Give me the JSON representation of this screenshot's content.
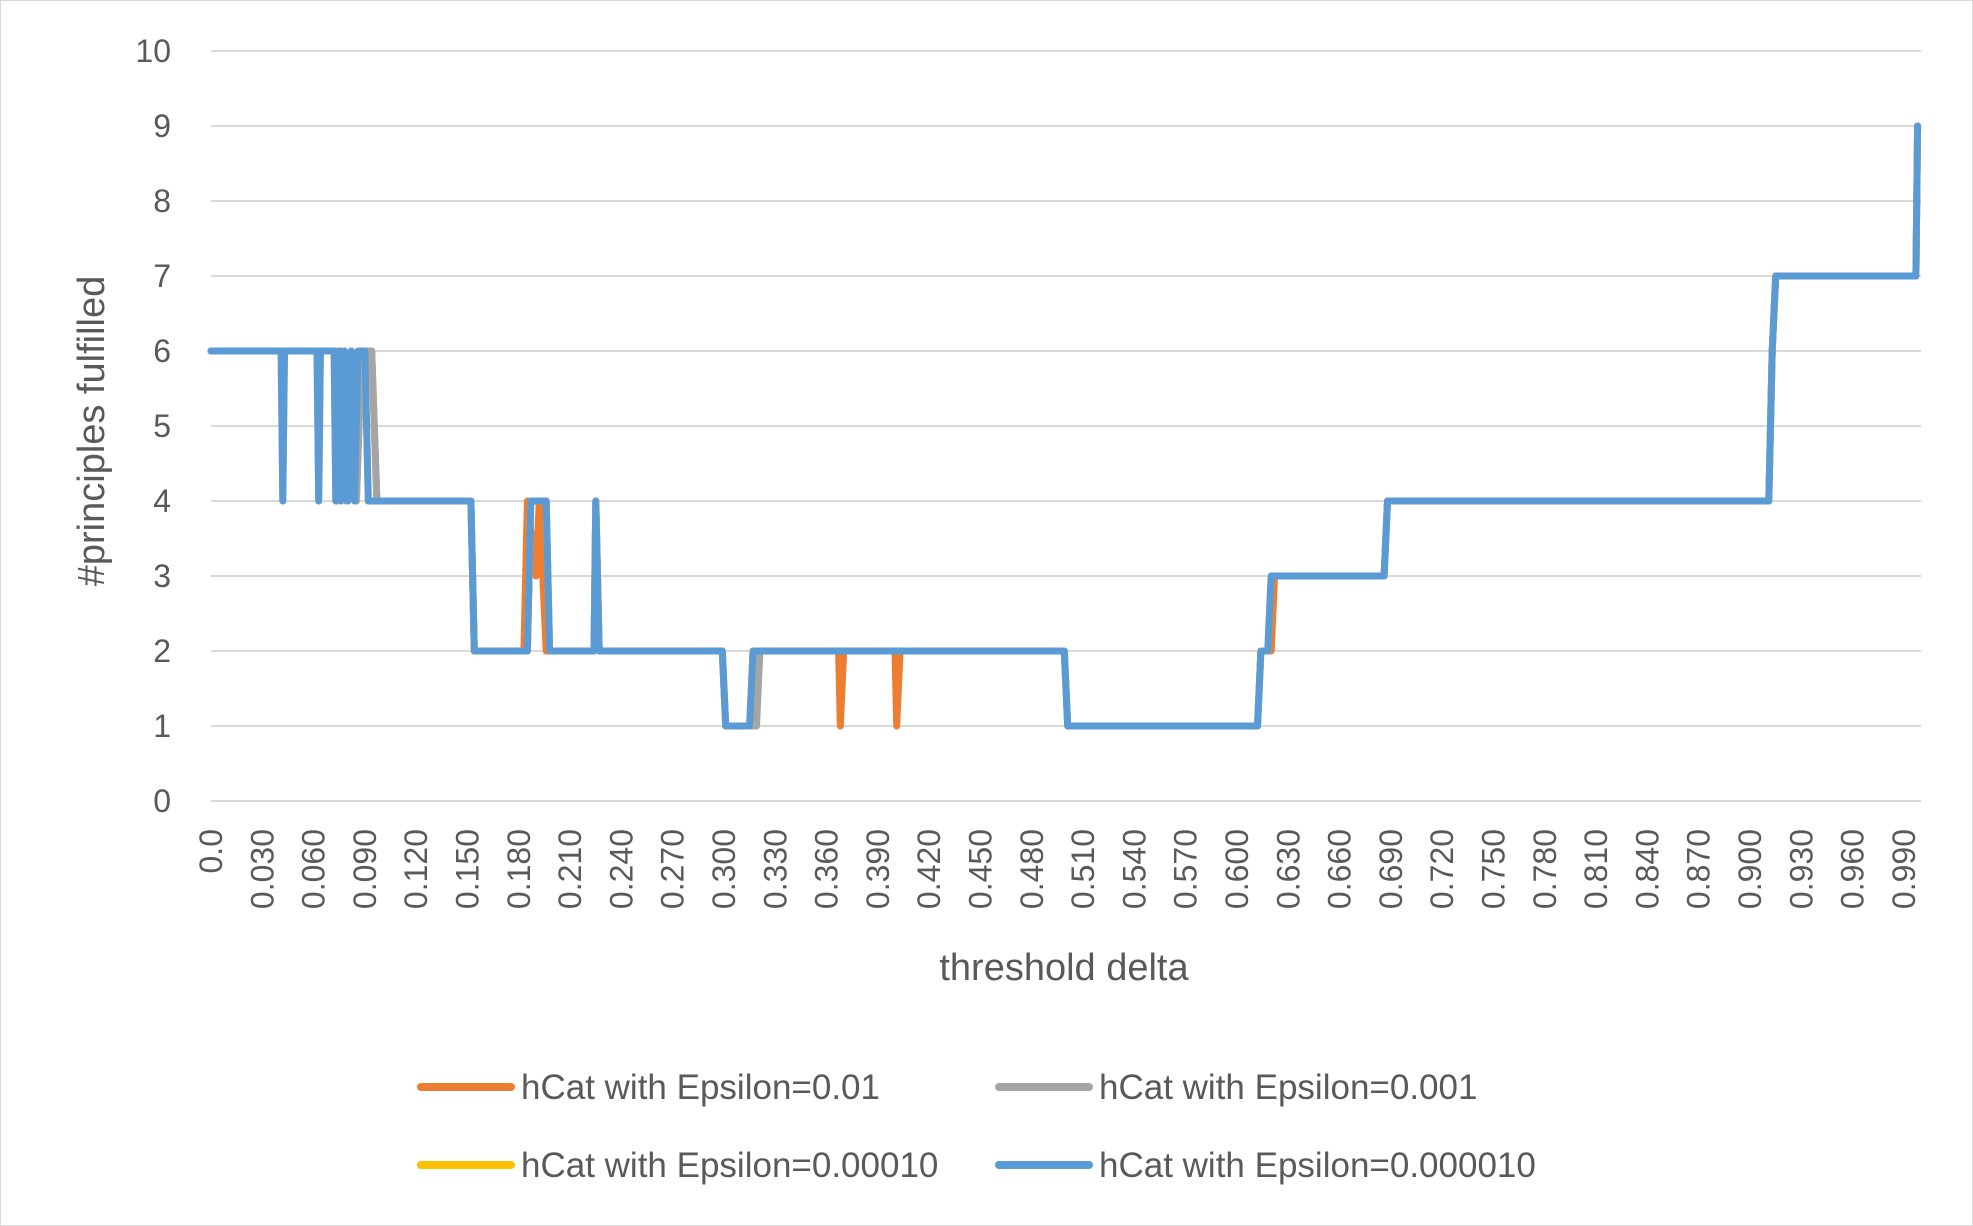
{
  "chart_data": {
    "type": "line",
    "title": "",
    "xlabel": "threshold delta",
    "ylabel": "#principles fulfilled",
    "xlim": [
      0,
      1
    ],
    "ylim": [
      0,
      10
    ],
    "grid": true,
    "legend_position": "bottom",
    "y_ticks": [
      "0",
      "1",
      "2",
      "3",
      "4",
      "5",
      "6",
      "7",
      "8",
      "9",
      "10"
    ],
    "x_ticks": [
      "0.0",
      "0.030",
      "0.060",
      "0.090",
      "0.120",
      "0.150",
      "0.180",
      "0.210",
      "0.240",
      "0.270",
      "0.300",
      "0.330",
      "0.360",
      "0.390",
      "0.420",
      "0.450",
      "0.480",
      "0.510",
      "0.540",
      "0.570",
      "0.600",
      "0.630",
      "0.660",
      "0.690",
      "0.720",
      "0.750",
      "0.780",
      "0.810",
      "0.840",
      "0.870",
      "0.900",
      "0.930",
      "0.960",
      "0.990"
    ],
    "series": [
      {
        "name": "hCat with Epsilon=0.01",
        "color": "#ED7D31",
        "points": [
          [
            0.0,
            6
          ],
          [
            0.073,
            6
          ],
          [
            0.074,
            4
          ],
          [
            0.076,
            6
          ],
          [
            0.079,
            4
          ],
          [
            0.082,
            6
          ],
          [
            0.085,
            4
          ],
          [
            0.088,
            6
          ],
          [
            0.091,
            6
          ],
          [
            0.094,
            6
          ],
          [
            0.097,
            4
          ],
          [
            0.152,
            4
          ],
          [
            0.154,
            2
          ],
          [
            0.183,
            2
          ],
          [
            0.185,
            4
          ],
          [
            0.19,
            3
          ],
          [
            0.192,
            4
          ],
          [
            0.196,
            2
          ],
          [
            0.224,
            2
          ],
          [
            0.225,
            4
          ],
          [
            0.227,
            2
          ],
          [
            0.299,
            2
          ],
          [
            0.301,
            1
          ],
          [
            0.315,
            1
          ],
          [
            0.317,
            2
          ],
          [
            0.367,
            2
          ],
          [
            0.368,
            1
          ],
          [
            0.37,
            2
          ],
          [
            0.4,
            2
          ],
          [
            0.401,
            1
          ],
          [
            0.403,
            2
          ],
          [
            0.499,
            2
          ],
          [
            0.501,
            1
          ],
          [
            0.612,
            1
          ],
          [
            0.614,
            2
          ],
          [
            0.62,
            2
          ],
          [
            0.622,
            3
          ],
          [
            0.686,
            3
          ],
          [
            0.688,
            4
          ],
          [
            0.911,
            4
          ],
          [
            0.913,
            6
          ],
          [
            0.915,
            7
          ],
          [
            0.997,
            7
          ],
          [
            0.998,
            9
          ]
        ]
      },
      {
        "name": "hCat with Epsilon=0.001",
        "color": "#A5A5A5",
        "points": [
          [
            0.0,
            6
          ],
          [
            0.073,
            6
          ],
          [
            0.074,
            4
          ],
          [
            0.076,
            6
          ],
          [
            0.079,
            4
          ],
          [
            0.082,
            6
          ],
          [
            0.085,
            4
          ],
          [
            0.088,
            6
          ],
          [
            0.091,
            6
          ],
          [
            0.094,
            6
          ],
          [
            0.097,
            4
          ],
          [
            0.152,
            4
          ],
          [
            0.154,
            2
          ],
          [
            0.185,
            2
          ],
          [
            0.187,
            4
          ],
          [
            0.196,
            4
          ],
          [
            0.198,
            2
          ],
          [
            0.224,
            2
          ],
          [
            0.225,
            4
          ],
          [
            0.227,
            2
          ],
          [
            0.299,
            2
          ],
          [
            0.301,
            1
          ],
          [
            0.319,
            1
          ],
          [
            0.321,
            2
          ],
          [
            0.499,
            2
          ],
          [
            0.501,
            1
          ],
          [
            0.612,
            1
          ],
          [
            0.614,
            2
          ],
          [
            0.618,
            2
          ],
          [
            0.62,
            3
          ],
          [
            0.686,
            3
          ],
          [
            0.688,
            4
          ],
          [
            0.911,
            4
          ],
          [
            0.913,
            6
          ],
          [
            0.915,
            7
          ],
          [
            0.997,
            7
          ],
          [
            0.998,
            9
          ]
        ]
      },
      {
        "name": "hCat with Epsilon=0.00010",
        "color": "#FFC000",
        "points": [
          [
            0.0,
            6
          ],
          [
            0.041,
            6
          ],
          [
            0.042,
            4
          ],
          [
            0.043,
            6
          ],
          [
            0.062,
            6
          ],
          [
            0.063,
            4
          ],
          [
            0.064,
            6
          ],
          [
            0.072,
            6
          ],
          [
            0.073,
            4
          ],
          [
            0.075,
            6
          ],
          [
            0.076,
            4
          ],
          [
            0.078,
            6
          ],
          [
            0.08,
            4
          ],
          [
            0.082,
            6
          ],
          [
            0.084,
            4
          ],
          [
            0.086,
            6
          ],
          [
            0.088,
            6
          ],
          [
            0.09,
            6
          ],
          [
            0.092,
            4
          ],
          [
            0.152,
            4
          ],
          [
            0.154,
            2
          ],
          [
            0.185,
            2
          ],
          [
            0.187,
            4
          ],
          [
            0.196,
            4
          ],
          [
            0.198,
            2
          ],
          [
            0.224,
            2
          ],
          [
            0.225,
            4
          ],
          [
            0.227,
            2
          ],
          [
            0.299,
            2
          ],
          [
            0.301,
            1
          ],
          [
            0.315,
            1
          ],
          [
            0.317,
            2
          ],
          [
            0.499,
            2
          ],
          [
            0.501,
            1
          ],
          [
            0.612,
            1
          ],
          [
            0.614,
            2
          ],
          [
            0.618,
            2
          ],
          [
            0.62,
            3
          ],
          [
            0.686,
            3
          ],
          [
            0.688,
            4
          ],
          [
            0.911,
            4
          ],
          [
            0.913,
            6
          ],
          [
            0.915,
            7
          ],
          [
            0.997,
            7
          ],
          [
            0.998,
            9
          ]
        ]
      },
      {
        "name": "hCat with Epsilon=0.000010",
        "color": "#5B9BD5",
        "points": [
          [
            0.0,
            6
          ],
          [
            0.041,
            6
          ],
          [
            0.042,
            4
          ],
          [
            0.043,
            6
          ],
          [
            0.062,
            6
          ],
          [
            0.063,
            4
          ],
          [
            0.064,
            6
          ],
          [
            0.072,
            6
          ],
          [
            0.073,
            4
          ],
          [
            0.075,
            6
          ],
          [
            0.076,
            4
          ],
          [
            0.078,
            6
          ],
          [
            0.08,
            4
          ],
          [
            0.082,
            6
          ],
          [
            0.084,
            4
          ],
          [
            0.086,
            6
          ],
          [
            0.088,
            6
          ],
          [
            0.09,
            6
          ],
          [
            0.092,
            4
          ],
          [
            0.152,
            4
          ],
          [
            0.154,
            2
          ],
          [
            0.185,
            2
          ],
          [
            0.187,
            4
          ],
          [
            0.196,
            4
          ],
          [
            0.198,
            2
          ],
          [
            0.224,
            2
          ],
          [
            0.225,
            4
          ],
          [
            0.227,
            2
          ],
          [
            0.299,
            2
          ],
          [
            0.301,
            1
          ],
          [
            0.315,
            1
          ],
          [
            0.317,
            2
          ],
          [
            0.499,
            2
          ],
          [
            0.501,
            1
          ],
          [
            0.612,
            1
          ],
          [
            0.614,
            2
          ],
          [
            0.618,
            2
          ],
          [
            0.62,
            3
          ],
          [
            0.686,
            3
          ],
          [
            0.688,
            4
          ],
          [
            0.911,
            4
          ],
          [
            0.913,
            6
          ],
          [
            0.915,
            7
          ],
          [
            0.997,
            7
          ],
          [
            0.998,
            9
          ]
        ]
      }
    ]
  }
}
